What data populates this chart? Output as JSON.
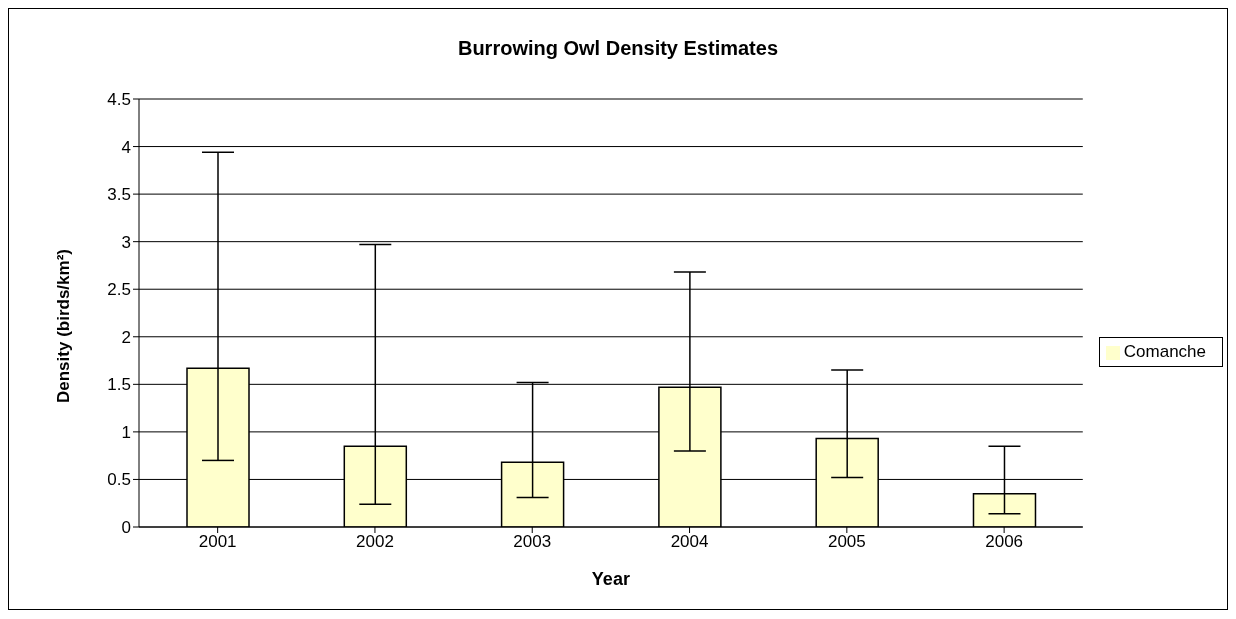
{
  "chart_data": {
    "type": "bar",
    "title": "Burrowing Owl Density Estimates",
    "xlabel": "Year",
    "ylabel": "Density (birds/km²)",
    "categories": [
      "2001",
      "2002",
      "2003",
      "2004",
      "2005",
      "2006"
    ],
    "series": [
      {
        "name": "Comanche",
        "color": "#ffffcc",
        "values": [
          1.67,
          0.85,
          0.68,
          1.47,
          0.93,
          0.35
        ],
        "errors": [
          [
            0.7,
            3.94
          ],
          [
            0.24,
            2.97
          ],
          [
            0.31,
            1.52
          ],
          [
            0.8,
            2.68
          ],
          [
            0.52,
            1.65
          ],
          [
            0.14,
            0.85
          ]
        ]
      }
    ],
    "ylim": [
      0,
      4.5
    ],
    "yticks": [
      0,
      0.5,
      1,
      1.5,
      2,
      2.5,
      3,
      3.5,
      4,
      4.5
    ],
    "grid": "y",
    "legend": "right"
  }
}
